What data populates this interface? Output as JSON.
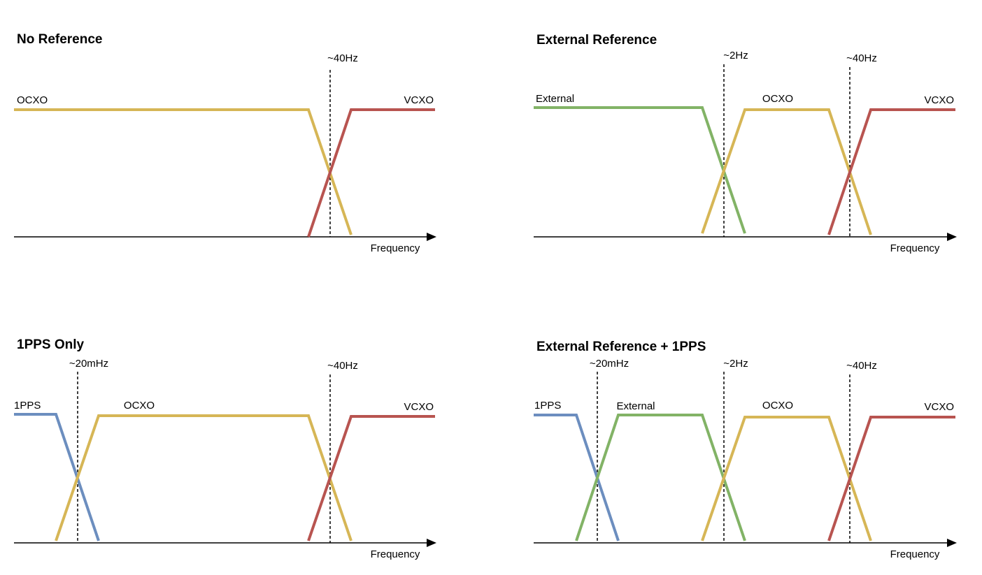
{
  "colors": {
    "1PPS": "#6C8EBF",
    "External": "#82B366",
    "OCXO": "#D6B656",
    "VCXO": "#B85450"
  },
  "panels": [
    {
      "title": "No Reference",
      "axis_label": "Frequency",
      "crossovers": [
        "~40Hz"
      ],
      "sources": [
        "OCXO",
        "VCXO"
      ]
    },
    {
      "title": "External Reference",
      "axis_label": "Frequency",
      "crossovers": [
        "~2Hz",
        "~40Hz"
      ],
      "sources": [
        "External",
        "OCXO",
        "VCXO"
      ]
    },
    {
      "title": "1PPS Only",
      "axis_label": "Frequency",
      "crossovers": [
        "~20mHz",
        "~40Hz"
      ],
      "sources": [
        "1PPS",
        "OCXO",
        "VCXO"
      ]
    },
    {
      "title": "External Reference + 1PPS",
      "axis_label": "Frequency",
      "crossovers": [
        "~20mHz",
        "~2Hz",
        "~40Hz"
      ],
      "sources": [
        "1PPS",
        "External",
        "OCXO",
        "VCXO"
      ]
    }
  ]
}
